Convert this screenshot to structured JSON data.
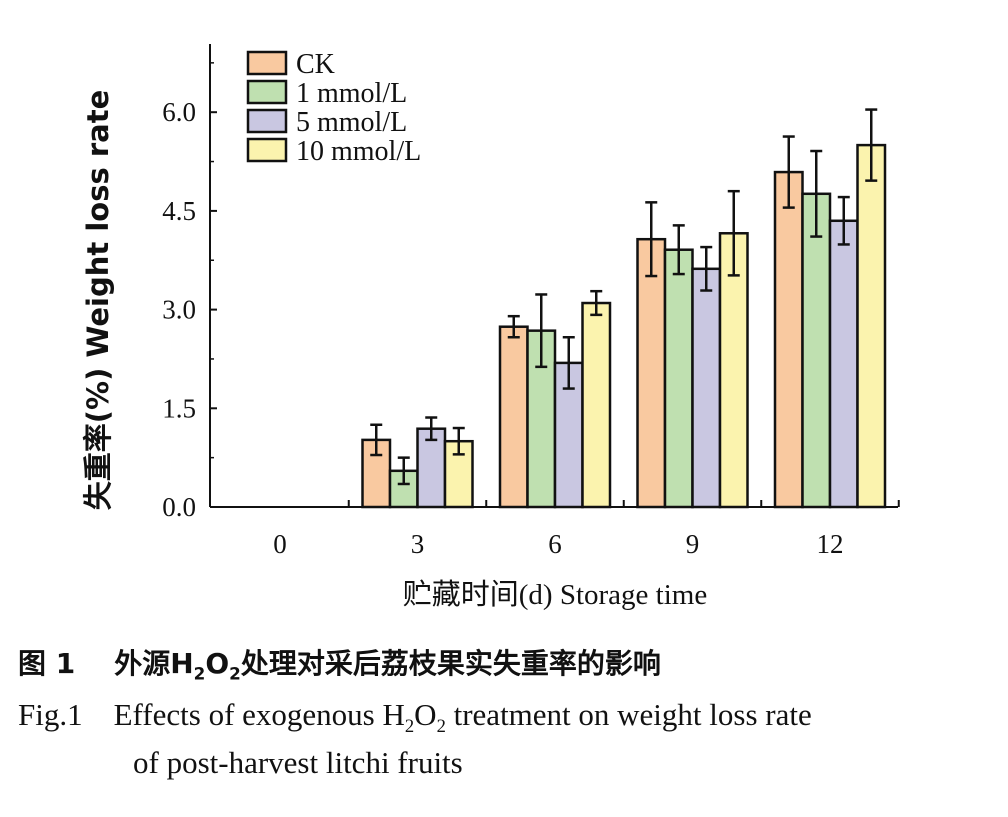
{
  "chart_data": {
    "type": "bar",
    "categories": [
      "0",
      "3",
      "6",
      "9",
      "12"
    ],
    "series": [
      {
        "name": "CK",
        "color": "#f9c9a0",
        "values": [
          0,
          1.02,
          2.74,
          4.07,
          5.09
        ],
        "errors": [
          0,
          0.23,
          0.16,
          0.56,
          0.54
        ]
      },
      {
        "name": "1 mmol/L",
        "color": "#bfe0b0",
        "values": [
          0,
          0.55,
          2.68,
          3.91,
          4.76
        ],
        "errors": [
          0,
          0.2,
          0.55,
          0.37,
          0.65
        ]
      },
      {
        "name": "5 mmol/L",
        "color": "#c9c7e1",
        "values": [
          0,
          1.19,
          2.19,
          3.62,
          4.35
        ],
        "errors": [
          0,
          0.17,
          0.39,
          0.33,
          0.36
        ]
      },
      {
        "name": "10 mmol/L",
        "color": "#fbf3ae",
        "values": [
          0,
          1.0,
          3.1,
          4.16,
          5.5
        ],
        "errors": [
          0,
          0.2,
          0.18,
          0.64,
          0.54
        ]
      }
    ],
    "ylim": [
      0,
      7
    ],
    "yticks": [
      "0.0",
      "1.5",
      "3.0",
      "4.5",
      "6.0"
    ],
    "ylabel": "失重率(%) Weight loss rate",
    "xlabel": "贮藏时间(d) Storage time",
    "legend": "top-left",
    "grid": false
  },
  "caption": {
    "cn_label": "图 1",
    "cn_pre": "外源H",
    "cn_sub1": "2",
    "cn_mid": "O",
    "cn_sub2": "2",
    "cn_post": "处理对采后荔枝果实失重率的影响",
    "en_label": "Fig.1",
    "en_pre": "Effects of exogenous H",
    "en_sub1": "2",
    "en_mid": "O",
    "en_sub2": "2",
    "en_post": " treatment on weight loss rate",
    "en_line2": "of post-harvest litchi fruits"
  }
}
